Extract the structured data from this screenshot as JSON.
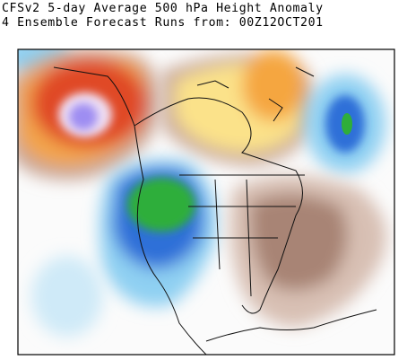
{
  "header": {
    "title": "CFSv2 5-day Average 500 hPa Height Anomaly",
    "subtitle": "4 Ensemble Forecast Runs from: 00Z12OCT201"
  }
}
